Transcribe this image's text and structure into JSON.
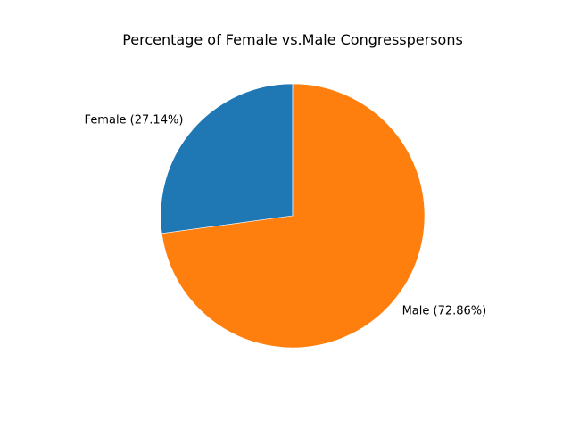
{
  "chart_data": {
    "type": "pie",
    "title": "Percentage of Female vs.Male Congresspersons",
    "start_angle_deg": 90,
    "direction": "counterclockwise",
    "slices": [
      {
        "label": "Female (27.14%)",
        "category": "Female",
        "value": 27.14,
        "color": "#1f77b4"
      },
      {
        "label": "Male (72.86%)",
        "category": "Male",
        "value": 72.86,
        "color": "#ff7f0e"
      }
    ]
  }
}
